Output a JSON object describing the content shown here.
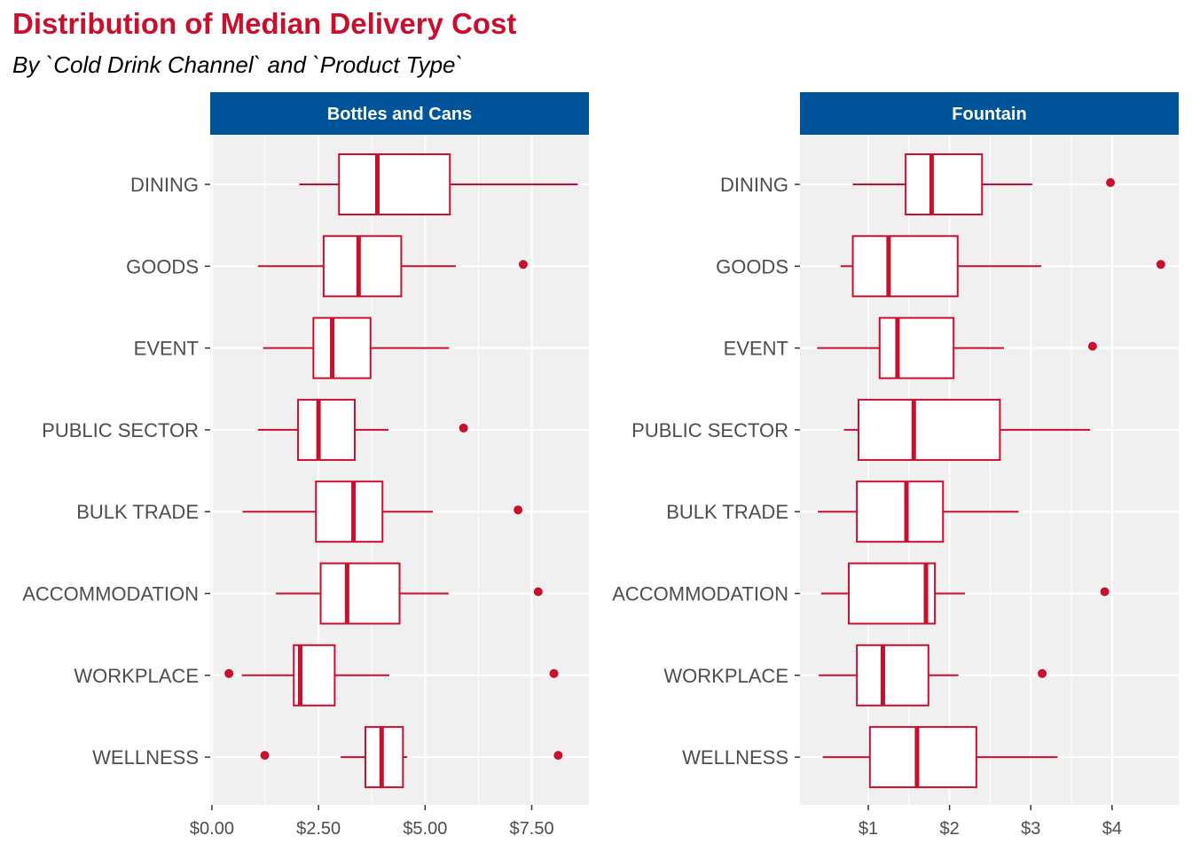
{
  "title": "Distribution of Median Delivery Cost",
  "subtitle": "By `Cold Drink Channel` and `Product Type`",
  "colors": {
    "title": "#c8102e",
    "box": "#c8102e",
    "strip": "#00559a",
    "panel_bg": "#f0f0f0",
    "grid": "#ffffff"
  },
  "chart_data": {
    "type": "boxplot",
    "orientation": "horizontal",
    "title": "Distribution of Median Delivery Cost",
    "subtitle": "By `Cold Drink Channel` and `Product Type`",
    "categories": [
      "DINING",
      "GOODS",
      "EVENT",
      "PUBLIC SECTOR",
      "BULK TRADE",
      "ACCOMMODATION",
      "WORKPLACE",
      "WELLNESS"
    ],
    "panels": [
      {
        "name": "Bottles and Cans",
        "xlim": [
          -0.04,
          8.84
        ],
        "ticks": [
          0,
          2.5,
          5,
          7.5
        ],
        "tick_labels": [
          "$0.00",
          "$2.50",
          "$5.00",
          "$7.50"
        ],
        "boxes": [
          {
            "category": "DINING",
            "min": 2.05,
            "q1": 2.98,
            "median": 3.88,
            "q3": 5.58,
            "max": 8.58,
            "outliers": []
          },
          {
            "category": "GOODS",
            "min": 1.08,
            "q1": 2.62,
            "median": 3.44,
            "q3": 4.44,
            "max": 5.72,
            "outliers": [
              7.3
            ]
          },
          {
            "category": "EVENT",
            "min": 1.2,
            "q1": 2.38,
            "median": 2.82,
            "q3": 3.72,
            "max": 5.56,
            "outliers": []
          },
          {
            "category": "PUBLIC SECTOR",
            "min": 1.08,
            "q1": 2.02,
            "median": 2.5,
            "q3": 3.35,
            "max": 4.14,
            "outliers": [
              5.9
            ]
          },
          {
            "category": "BULK TRADE",
            "min": 0.72,
            "q1": 2.44,
            "median": 3.32,
            "q3": 4.0,
            "max": 5.18,
            "outliers": [
              7.18
            ]
          },
          {
            "category": "ACCOMMODATION",
            "min": 1.5,
            "q1": 2.55,
            "median": 3.17,
            "q3": 4.4,
            "max": 5.55,
            "outliers": [
              7.65
            ]
          },
          {
            "category": "WORKPLACE",
            "min": 0.7,
            "q1": 1.92,
            "median": 2.07,
            "q3": 2.88,
            "max": 4.16,
            "outliers": [
              0.4,
              8.02
            ]
          },
          {
            "category": "WELLNESS",
            "min": 3.02,
            "q1": 3.6,
            "median": 3.98,
            "q3": 4.48,
            "max": 4.58,
            "outliers": [
              1.24,
              8.12
            ]
          }
        ]
      },
      {
        "name": "Fountain",
        "xlim": [
          0.16,
          4.82
        ],
        "ticks": [
          1,
          2,
          3,
          4
        ],
        "tick_labels": [
          "$1",
          "$2",
          "$3",
          "$4"
        ],
        "boxes": [
          {
            "category": "DINING",
            "min": 0.81,
            "q1": 1.46,
            "median": 1.78,
            "q3": 2.4,
            "max": 3.02,
            "outliers": [
              3.98
            ]
          },
          {
            "category": "GOODS",
            "min": 0.66,
            "q1": 0.81,
            "median": 1.25,
            "q3": 2.1,
            "max": 3.13,
            "outliers": [
              4.6
            ]
          },
          {
            "category": "EVENT",
            "min": 0.37,
            "q1": 1.14,
            "median": 1.36,
            "q3": 2.05,
            "max": 2.67,
            "outliers": [
              3.76
            ]
          },
          {
            "category": "PUBLIC SECTOR",
            "min": 0.7,
            "q1": 0.88,
            "median": 1.56,
            "q3": 2.62,
            "max": 3.73,
            "outliers": []
          },
          {
            "category": "BULK TRADE",
            "min": 0.38,
            "q1": 0.86,
            "median": 1.47,
            "q3": 1.92,
            "max": 2.85,
            "outliers": []
          },
          {
            "category": "ACCOMMODATION",
            "min": 0.42,
            "q1": 0.76,
            "median": 1.71,
            "q3": 1.82,
            "max": 2.19,
            "outliers": [
              3.91
            ]
          },
          {
            "category": "WORKPLACE",
            "min": 0.39,
            "q1": 0.86,
            "median": 1.18,
            "q3": 1.74,
            "max": 2.11,
            "outliers": [
              3.14
            ]
          },
          {
            "category": "WELLNESS",
            "min": 0.44,
            "q1": 1.02,
            "median": 1.6,
            "q3": 2.33,
            "max": 3.33,
            "outliers": []
          }
        ]
      }
    ]
  }
}
